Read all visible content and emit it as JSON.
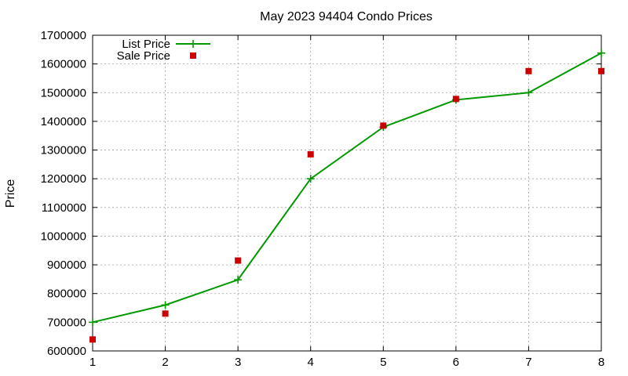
{
  "chart_data": {
    "type": "line",
    "title": "May 2023 94404 Condo Prices",
    "xlabel": "",
    "ylabel": "Price",
    "x": [
      1,
      2,
      3,
      4,
      5,
      6,
      7,
      8
    ],
    "xlim": [
      1,
      8
    ],
    "ylim": [
      600000,
      1700000
    ],
    "xticks": [
      "1",
      "2",
      "3",
      "4",
      "5",
      "6",
      "7",
      "8"
    ],
    "yticks": [
      "600000",
      "700000",
      "800000",
      "900000",
      "1000000",
      "1100000",
      "1200000",
      "1300000",
      "1400000",
      "1500000",
      "1600000",
      "1700000"
    ],
    "grid": true,
    "legend": "top-left",
    "series": [
      {
        "name": "List Price",
        "style": "lines+points",
        "marker": "plus",
        "color": "#009900",
        "values": [
          700000,
          760000,
          848000,
          1200000,
          1380000,
          1475000,
          1500000,
          1638000
        ]
      },
      {
        "name": "Sale Price",
        "style": "points",
        "marker": "square",
        "color": "#cc0000",
        "values": [
          640000,
          730000,
          915000,
          1285000,
          1385000,
          1478000,
          1575000,
          1575000
        ]
      }
    ]
  }
}
